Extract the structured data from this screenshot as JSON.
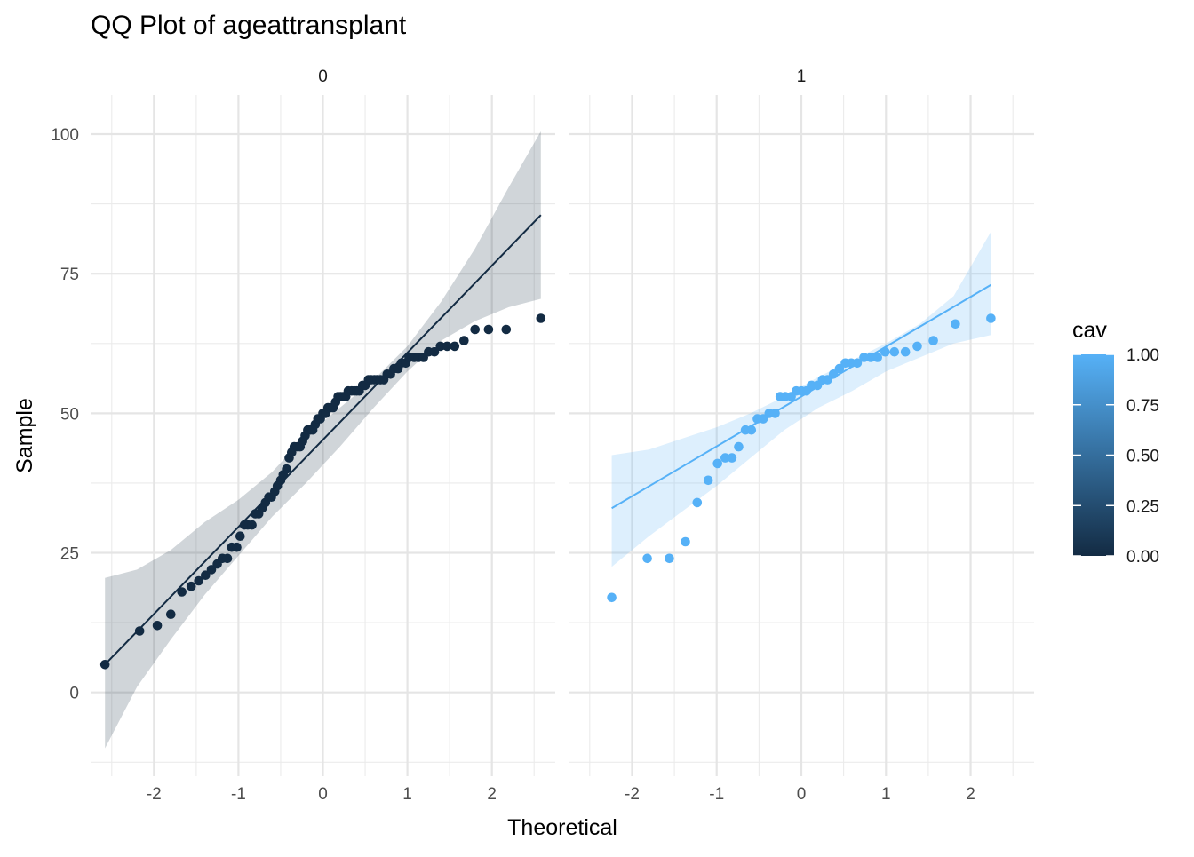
{
  "chart_data": {
    "type": "scatter",
    "title": "QQ Plot of ageattransplant",
    "xlabel": "Theoretical",
    "ylabel": "Sample",
    "xlim": [
      -2.75,
      2.75
    ],
    "ylim": [
      -15,
      107
    ],
    "x_ticks": [
      -2,
      -1,
      0,
      1,
      2
    ],
    "x_tick_labels": [
      "-2",
      "-1",
      "0",
      "1",
      "2"
    ],
    "y_ticks": [
      0,
      25,
      50,
      75,
      100
    ],
    "y_tick_labels": [
      "0",
      "25",
      "50",
      "75",
      "100"
    ],
    "grid": true,
    "legend": {
      "title": "cav",
      "position": "right",
      "type": "colorbar",
      "range": [
        0,
        1
      ],
      "low_color": "#132B43",
      "high_color": "#56B1F7",
      "breaks": [
        0,
        0.25,
        0.5,
        0.75,
        1
      ],
      "labels": [
        "0.00",
        "0.25",
        "0.50",
        "0.75",
        "1.00"
      ]
    },
    "panels": [
      {
        "strip": "0",
        "cav": 0,
        "color": "#132B43",
        "band_fill": "#132B43",
        "band_opacity": 0.2,
        "line": {
          "x": [
            -2.58,
            2.58
          ],
          "y": [
            5,
            85.5
          ]
        },
        "band_upper": {
          "x": [
            -2.58,
            -2.2,
            -1.8,
            -1.4,
            -1.0,
            -0.6,
            -0.2,
            0.2,
            0.6,
            1.0,
            1.4,
            1.8,
            2.2,
            2.58
          ],
          "y": [
            20.5,
            22,
            25.5,
            30.5,
            34.5,
            39.5,
            46,
            51,
            56,
            62,
            70,
            79.5,
            90.5,
            100.5
          ]
        },
        "band_lower": {
          "x": [
            -2.58,
            -2.2,
            -1.8,
            -1.4,
            -1.0,
            -0.6,
            -0.2,
            0.2,
            0.6,
            1.0,
            1.4,
            1.8,
            2.2,
            2.58
          ],
          "y": [
            -10,
            1,
            9.5,
            17.5,
            24.5,
            31.5,
            37.5,
            44,
            51,
            57.5,
            63,
            66.5,
            69,
            70.5
          ]
        },
        "points": [
          [
            -2.58,
            5
          ],
          [
            -2.17,
            11
          ],
          [
            -1.96,
            12
          ],
          [
            -1.8,
            14
          ],
          [
            -1.67,
            18
          ],
          [
            -1.56,
            19
          ],
          [
            -1.47,
            20
          ],
          [
            -1.39,
            21
          ],
          [
            -1.32,
            22
          ],
          [
            -1.25,
            23
          ],
          [
            -1.19,
            24
          ],
          [
            -1.13,
            24
          ],
          [
            -1.08,
            26
          ],
          [
            -1.02,
            26
          ],
          [
            -0.98,
            28
          ],
          [
            -0.93,
            30
          ],
          [
            -0.89,
            30
          ],
          [
            -0.84,
            30
          ],
          [
            -0.8,
            32
          ],
          [
            -0.76,
            32
          ],
          [
            -0.72,
            33
          ],
          [
            -0.68,
            34
          ],
          [
            -0.64,
            35
          ],
          [
            -0.61,
            35
          ],
          [
            -0.57,
            36
          ],
          [
            -0.54,
            37
          ],
          [
            -0.5,
            38
          ],
          [
            -0.47,
            39
          ],
          [
            -0.43,
            40
          ],
          [
            -0.4,
            42
          ],
          [
            -0.37,
            43
          ],
          [
            -0.34,
            44
          ],
          [
            -0.3,
            44
          ],
          [
            -0.27,
            44
          ],
          [
            -0.24,
            45
          ],
          [
            -0.21,
            46
          ],
          [
            -0.18,
            47
          ],
          [
            -0.15,
            47
          ],
          [
            -0.12,
            47
          ],
          [
            -0.09,
            48
          ],
          [
            -0.06,
            49
          ],
          [
            -0.03,
            49
          ],
          [
            0.0,
            50
          ],
          [
            0.03,
            50
          ],
          [
            0.06,
            51
          ],
          [
            0.09,
            51
          ],
          [
            0.12,
            51
          ],
          [
            0.15,
            52
          ],
          [
            0.18,
            53
          ],
          [
            0.21,
            53
          ],
          [
            0.24,
            53
          ],
          [
            0.27,
            53
          ],
          [
            0.3,
            54
          ],
          [
            0.34,
            54
          ],
          [
            0.37,
            54
          ],
          [
            0.4,
            54
          ],
          [
            0.43,
            54
          ],
          [
            0.47,
            55
          ],
          [
            0.5,
            55
          ],
          [
            0.54,
            56
          ],
          [
            0.57,
            56
          ],
          [
            0.61,
            56
          ],
          [
            0.64,
            56
          ],
          [
            0.68,
            56
          ],
          [
            0.72,
            56
          ],
          [
            0.76,
            57
          ],
          [
            0.8,
            57
          ],
          [
            0.84,
            58
          ],
          [
            0.89,
            58
          ],
          [
            0.93,
            59
          ],
          [
            0.98,
            59
          ],
          [
            1.02,
            60
          ],
          [
            1.08,
            60
          ],
          [
            1.13,
            60
          ],
          [
            1.19,
            60
          ],
          [
            1.25,
            61
          ],
          [
            1.32,
            61
          ],
          [
            1.39,
            62
          ],
          [
            1.47,
            62
          ],
          [
            1.56,
            62
          ],
          [
            1.67,
            63
          ],
          [
            1.8,
            65
          ],
          [
            1.96,
            65
          ],
          [
            2.17,
            65
          ],
          [
            2.58,
            67
          ]
        ]
      },
      {
        "strip": "1",
        "cav": 1,
        "color": "#56B1F7",
        "band_fill": "#56B1F7",
        "band_opacity": 0.2,
        "line": {
          "x": [
            -2.24,
            2.24
          ],
          "y": [
            33,
            73
          ]
        },
        "band_upper": {
          "x": [
            -2.24,
            -1.8,
            -1.4,
            -1.0,
            -0.6,
            -0.2,
            0.2,
            0.6,
            1.0,
            1.4,
            1.8,
            2.24
          ],
          "y": [
            42.5,
            43.5,
            45.5,
            47.5,
            50,
            53,
            56.5,
            59.5,
            62.5,
            66,
            71,
            82.5
          ]
        },
        "band_lower": {
          "x": [
            -2.24,
            -1.8,
            -1.4,
            -1.0,
            -0.6,
            -0.2,
            0.2,
            0.6,
            1.0,
            1.4,
            1.8,
            2.24
          ],
          "y": [
            22.5,
            28,
            32.5,
            37,
            42,
            47,
            51,
            54,
            57.5,
            60,
            62.5,
            64
          ]
        },
        "points": [
          [
            -2.24,
            17
          ],
          [
            -1.82,
            24
          ],
          [
            -1.56,
            24
          ],
          [
            -1.37,
            27
          ],
          [
            -1.23,
            34
          ],
          [
            -1.1,
            38
          ],
          [
            -0.99,
            41
          ],
          [
            -0.9,
            42
          ],
          [
            -0.82,
            42
          ],
          [
            -0.74,
            44
          ],
          [
            -0.66,
            47
          ],
          [
            -0.59,
            47
          ],
          [
            -0.52,
            49
          ],
          [
            -0.45,
            49
          ],
          [
            -0.38,
            50
          ],
          [
            -0.31,
            50
          ],
          [
            -0.25,
            53
          ],
          [
            -0.19,
            53
          ],
          [
            -0.12,
            53
          ],
          [
            -0.06,
            54
          ],
          [
            0.0,
            54
          ],
          [
            0.06,
            54
          ],
          [
            0.12,
            55
          ],
          [
            0.19,
            55
          ],
          [
            0.25,
            56
          ],
          [
            0.31,
            56
          ],
          [
            0.38,
            57
          ],
          [
            0.45,
            58
          ],
          [
            0.52,
            59
          ],
          [
            0.59,
            59
          ],
          [
            0.66,
            59
          ],
          [
            0.74,
            60
          ],
          [
            0.82,
            60
          ],
          [
            0.9,
            60
          ],
          [
            0.99,
            61
          ],
          [
            1.1,
            61
          ],
          [
            1.23,
            61
          ],
          [
            1.37,
            62
          ],
          [
            1.56,
            63
          ],
          [
            1.82,
            66
          ],
          [
            2.24,
            67
          ]
        ]
      }
    ]
  }
}
